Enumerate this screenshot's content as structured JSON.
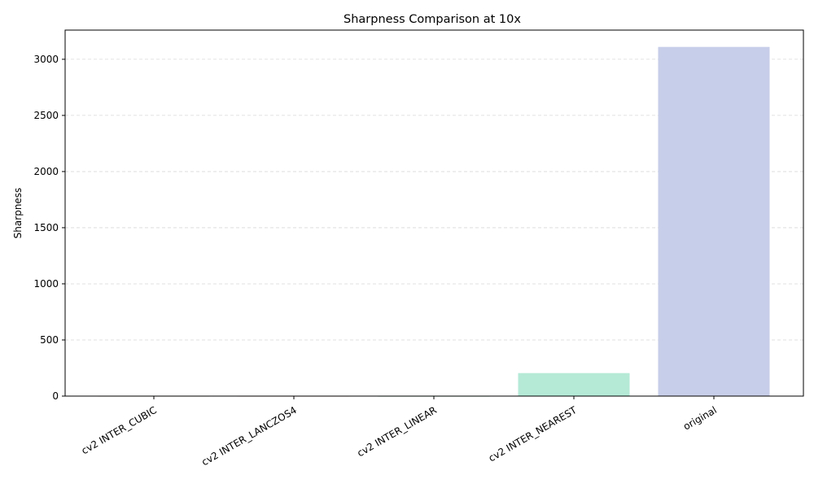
{
  "chart_data": {
    "type": "bar",
    "title": "Sharpness Comparison at 10x",
    "xlabel": "",
    "ylabel": "Sharpness",
    "categories": [
      "cv2 INTER_CUBIC",
      "cv2 INTER_LANCZOS4",
      "cv2 INTER_LINEAR",
      "cv2 INTER_NEAREST",
      "original"
    ],
    "values": [
      3,
      3,
      2,
      205,
      3110
    ],
    "colors": [
      "#f2c4b8",
      "#f0c7b5",
      "#ccebd8",
      "#b5ead7",
      "#c7cee9"
    ],
    "ylim": [
      0,
      3260
    ],
    "yticks": [
      0,
      500,
      1000,
      1500,
      2000,
      2500,
      3000
    ],
    "grid": "y-dashed",
    "legend": "none"
  }
}
